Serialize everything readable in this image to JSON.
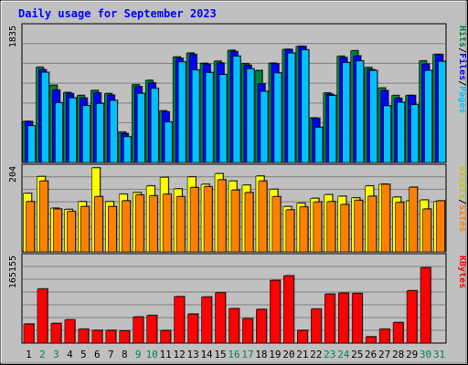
{
  "chart_data": [
    {
      "type": "bar",
      "title": "Daily usage for September 2023",
      "categories": [
        "1",
        "2",
        "3",
        "4",
        "5",
        "6",
        "7",
        "8",
        "9",
        "10",
        "11",
        "12",
        "13",
        "14",
        "15",
        "16",
        "17",
        "18",
        "19",
        "20",
        "21",
        "22",
        "23",
        "24",
        "25",
        "26",
        "27",
        "28",
        "29",
        "30",
        "31"
      ],
      "weekend_days": [
        "2",
        "3",
        "9",
        "10",
        "16",
        "17",
        "23",
        "24",
        "30",
        "31"
      ],
      "ymax_label": "1835",
      "ylim": [
        0,
        1835
      ],
      "side_labels": [
        "Pages",
        "/",
        "Files",
        "/",
        "Hits"
      ],
      "series": [
        {
          "name": "Hits",
          "color": "#008040",
          "values": [
            556,
            1292,
            1050,
            950,
            910,
            978,
            935,
            411,
            1056,
            1115,
            701,
            1433,
            1486,
            1347,
            1375,
            1523,
            1341,
            1248,
            1349,
            1535,
            1576,
            605,
            943,
            1442,
            1516,
            1289,
            1011,
            909,
            909,
            1379,
            1466
          ]
        },
        {
          "name": "Files",
          "color": "#0000ff",
          "values": [
            556,
            1259,
            983,
            934,
            874,
            944,
            914,
            393,
            1029,
            1079,
            686,
            1415,
            1467,
            1335,
            1350,
            1506,
            1320,
            1067,
            1339,
            1535,
            1576,
            598,
            926,
            1424,
            1446,
            1260,
            975,
            870,
            909,
            1336,
            1466
          ]
        },
        {
          "name": "Pages",
          "color": "#00c0ff",
          "values": [
            498,
            1224,
            809,
            876,
            771,
            800,
            842,
            348,
            937,
            1005,
            548,
            1365,
            1255,
            1221,
            1193,
            1443,
            1271,
            965,
            1215,
            1485,
            1528,
            477,
            909,
            1356,
            1378,
            1248,
            769,
            816,
            784,
            1249,
            1372
          ]
        }
      ]
    },
    {
      "type": "bar",
      "ymax_label": "204",
      "ylim": [
        0,
        204
      ],
      "side_labels": [
        "Sites",
        "/",
        "Visits"
      ],
      "series": [
        {
          "name": "Visits",
          "color": "#ffff00",
          "values": [
            142,
            183,
            106,
            103,
            122,
            204,
            122,
            140,
            144,
            160,
            181,
            153,
            182,
            164,
            190,
            172,
            162,
            184,
            152,
            110,
            118,
            130,
            139,
            135,
            131,
            160,
            164,
            133,
            124,
            126,
            122
          ]
        },
        {
          "name": "Sites",
          "color": "#ff8000",
          "values": [
            122,
            172,
            104,
            98,
            110,
            134,
            110,
            124,
            138,
            136,
            140,
            134,
            156,
            158,
            175,
            150,
            144,
            172,
            134,
            102,
            109,
            121,
            122,
            115,
            125,
            135,
            164,
            120,
            157,
            104,
            124
          ]
        }
      ]
    },
    {
      "type": "bar",
      "ymax_label": "165155",
      "ylim": [
        0,
        165155
      ],
      "side_labels": [
        "KBytes"
      ],
      "series": [
        {
          "name": "KBytes",
          "color": "#ff0000",
          "values": [
            36700,
            104100,
            37800,
            44600,
            26800,
            24400,
            24400,
            23400,
            50300,
            53100,
            24100,
            89400,
            55900,
            88700,
            96800,
            66300,
            47000,
            64800,
            120600,
            129600,
            24400,
            65400,
            94300,
            96300,
            95500,
            12200,
            26800,
            39500,
            100800,
            145100,
            0
          ]
        }
      ]
    }
  ],
  "colors": {
    "background": "#c0c0c0",
    "plot_bg": "#c0c0c0",
    "weekday_label": "#000000",
    "weekend_label": "#00805c",
    "title": "#0000ff"
  }
}
